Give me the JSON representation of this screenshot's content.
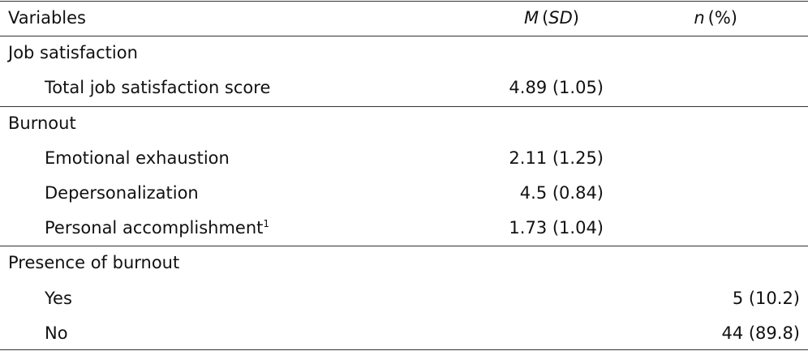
{
  "header": {
    "variable": "Variables",
    "mean_sd": [
      "M",
      "(",
      "SD",
      ")"
    ],
    "n_pct": [
      "n",
      "(%)"
    ]
  },
  "sections": [
    {
      "title": "Job satisfaction",
      "rows": [
        [
          "Total job satisfaction score",
          "4.89 (1.05)",
          null
        ]
      ]
    },
    {
      "title": "Burnout",
      "rows": [
        [
          "Emotional exhaustion",
          "2.11 (1.25)",
          null
        ],
        [
          "Depersonalization",
          "4.5 (0.84)",
          null
        ],
        [
          "Personal accomplishment",
          "1.73 (1.04)",
          null,
          "1"
        ]
      ]
    },
    {
      "title": "Presence of burnout",
      "rows": [
        [
          "Yes",
          null,
          "5 (10.2)"
        ],
        [
          "No",
          null,
          "44 (89.8)"
        ]
      ]
    }
  ]
}
